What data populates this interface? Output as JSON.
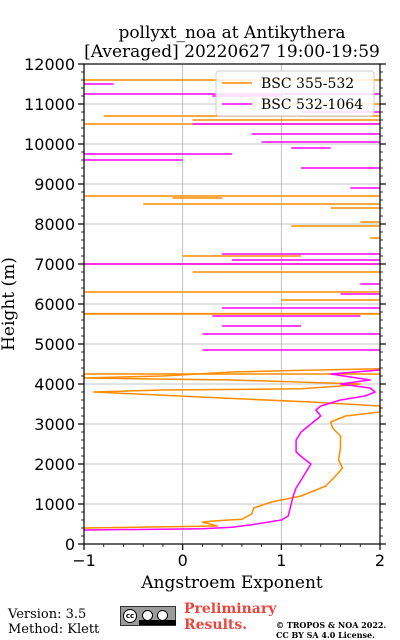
{
  "chart_data": {
    "type": "line",
    "title_line1": "pollyxt_noa at Antikythera",
    "title_line2": "[Averaged] 20220627 19:00-19:59",
    "xlabel": "Angstroem Exponent",
    "ylabel": "Height (m)",
    "xlim": [
      -1,
      2
    ],
    "ylim": [
      0,
      12000
    ],
    "xticks": [
      -1,
      0,
      1,
      2
    ],
    "yticks": [
      0,
      1000,
      2000,
      3000,
      4000,
      5000,
      6000,
      7000,
      8000,
      9000,
      10000,
      11000,
      12000
    ],
    "grid": true,
    "legend_position": "top-right",
    "series": [
      {
        "name": "BSC 355-532",
        "color": "#ff8c00",
        "points": [
          [
            -1.0,
            400
          ],
          [
            0.35,
            450
          ],
          [
            0.2,
            550
          ],
          [
            0.35,
            580
          ],
          [
            0.6,
            620
          ],
          [
            0.7,
            750
          ],
          [
            0.72,
            900
          ],
          [
            0.9,
            1050
          ],
          [
            1.2,
            1200
          ],
          [
            1.45,
            1450
          ],
          [
            1.55,
            1700
          ],
          [
            1.62,
            1900
          ],
          [
            1.58,
            2100
          ],
          [
            1.6,
            2400
          ],
          [
            1.6,
            2700
          ],
          [
            1.52,
            2900
          ],
          [
            1.5,
            3050
          ],
          [
            1.65,
            3200
          ],
          [
            2.0,
            3300
          ],
          [
            2.0,
            3450
          ],
          [
            1.3,
            3550
          ],
          [
            0.4,
            3650
          ],
          [
            -0.9,
            3800
          ],
          [
            -0.2,
            3850
          ],
          [
            1.2,
            3880
          ],
          [
            1.6,
            3950
          ],
          [
            1.8,
            4000
          ],
          [
            0.5,
            4100
          ],
          [
            -1.0,
            4150
          ],
          [
            -0.2,
            4200
          ],
          [
            0.5,
            4300
          ],
          [
            1.0,
            4330
          ],
          [
            2.0,
            4380
          ]
        ],
        "spikes": [
          [
            4250,
            -1.0,
            2.0
          ],
          [
            5750,
            -1.0,
            2.0
          ],
          [
            5760,
            -1.0,
            2.0
          ],
          [
            6100,
            1.0,
            2.0
          ],
          [
            6300,
            -1.0,
            2.0
          ],
          [
            6800,
            0.1,
            2.0
          ],
          [
            7000,
            -1.0,
            2.0
          ],
          [
            7200,
            0.0,
            1.2
          ],
          [
            7650,
            1.9,
            2.0
          ],
          [
            7950,
            1.1,
            2.0
          ],
          [
            8050,
            1.8,
            2.0
          ],
          [
            8400,
            1.5,
            2.0
          ],
          [
            8500,
            -0.4,
            2.0
          ],
          [
            8650,
            -0.1,
            0.4
          ],
          [
            8700,
            -1.0,
            2.0
          ],
          [
            10500,
            -1.0,
            2.0
          ],
          [
            10600,
            0.1,
            2.0
          ],
          [
            10700,
            -0.8,
            2.0
          ],
          [
            11000,
            0.5,
            2.0
          ],
          [
            11600,
            -1.0,
            2.0
          ]
        ]
      },
      {
        "name": "BSC 532-1064",
        "color": "#ff00ff",
        "points": [
          [
            -1.0,
            350
          ],
          [
            0.2,
            380
          ],
          [
            0.5,
            420
          ],
          [
            0.7,
            480
          ],
          [
            1.0,
            600
          ],
          [
            1.07,
            700
          ],
          [
            1.08,
            800
          ],
          [
            1.1,
            1000
          ],
          [
            1.12,
            1200
          ],
          [
            1.15,
            1400
          ],
          [
            1.2,
            1600
          ],
          [
            1.25,
            1800
          ],
          [
            1.3,
            2000
          ],
          [
            1.22,
            2150
          ],
          [
            1.15,
            2300
          ],
          [
            1.15,
            2500
          ],
          [
            1.15,
            2600
          ],
          [
            1.2,
            2800
          ],
          [
            1.3,
            3000
          ],
          [
            1.4,
            3200
          ],
          [
            1.35,
            3350
          ],
          [
            1.4,
            3450
          ],
          [
            1.6,
            3600
          ],
          [
            1.85,
            3700
          ],
          [
            1.95,
            3800
          ],
          [
            1.9,
            3900
          ],
          [
            1.6,
            4000
          ],
          [
            1.9,
            4100
          ],
          [
            1.5,
            4250
          ],
          [
            2.0,
            4350
          ]
        ],
        "spikes": [
          [
            4850,
            0.2,
            2.0
          ],
          [
            5250,
            0.2,
            2.0
          ],
          [
            5450,
            0.4,
            1.2
          ],
          [
            5700,
            0.3,
            1.8
          ],
          [
            5900,
            0.4,
            2.0
          ],
          [
            6250,
            1.6,
            2.0
          ],
          [
            6500,
            1.8,
            2.0
          ],
          [
            7000,
            -1.0,
            2.0
          ],
          [
            7100,
            0.5,
            2.0
          ],
          [
            7250,
            0.4,
            2.0
          ],
          [
            9400,
            1.2,
            2.0
          ],
          [
            8900,
            1.7,
            2.0
          ],
          [
            9600,
            -1.0,
            0.0
          ],
          [
            9750,
            -1.0,
            0.5
          ],
          [
            9900,
            1.1,
            1.5
          ],
          [
            10050,
            0.8,
            2.0
          ],
          [
            10250,
            0.7,
            2.0
          ],
          [
            10500,
            0.1,
            2.0
          ],
          [
            10800,
            1.2,
            2.0
          ],
          [
            11250,
            -1.0,
            2.0
          ],
          [
            11500,
            -1.0,
            -0.7
          ],
          [
            11200,
            0.3,
            1.0
          ]
        ]
      }
    ]
  },
  "footer": {
    "version": "Version: 3.5",
    "method": "Method: Klett",
    "preliminary_line1": "Preliminary",
    "preliminary_line2": "Results.",
    "copyright_line1": "© TROPOS & NOA 2022.",
    "copyright_line2": "CC BY SA 4.0 License.",
    "license_badge_icon": "cc-by-sa-badge-icon",
    "license_badge_text": "cc"
  }
}
